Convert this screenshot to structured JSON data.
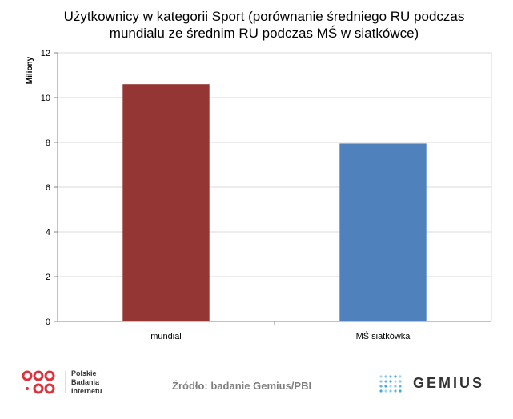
{
  "chart_data": {
    "type": "bar",
    "title_lines": [
      "Użytkownicy  w kategorii Sport (porównanie średniego RU podczas",
      "mundialu ze średnim RU podczas MŚ w siatkówce)"
    ],
    "ylabel": "Miliony",
    "xlabel": "",
    "categories": [
      "mundial",
      "MŚ siatkówka"
    ],
    "values": [
      10.6,
      7.95
    ],
    "colors": [
      "#943634",
      "#4f81bd"
    ],
    "ylim": [
      0,
      12
    ],
    "yticks": [
      0,
      2,
      4,
      6,
      8,
      10,
      12
    ],
    "grid": true
  },
  "footer": {
    "source_text": "Źródło: badanie Gemius/PBI",
    "pbi_lines": [
      "Polskie",
      "Badania",
      "Internetu"
    ],
    "pbi_color": "#e0313b",
    "gemius_text": "GEMIUS",
    "gemius_color": "#1c9ad6"
  }
}
